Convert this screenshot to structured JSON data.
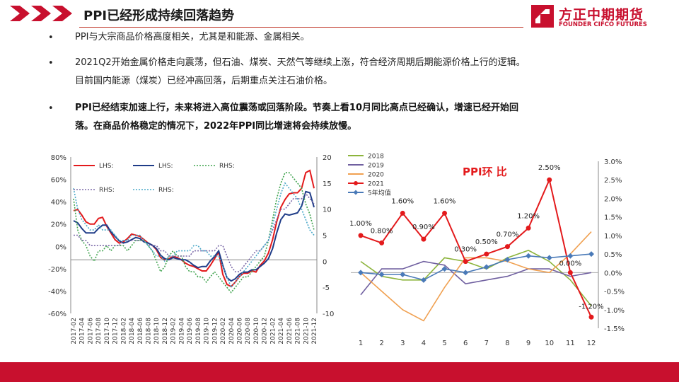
{
  "header": {
    "title": "PPI已经形成持续回落趋势"
  },
  "logo": {
    "cn": "方正中期期货",
    "en": "FOUNDER CIFCO FUTURES"
  },
  "bullets": [
    {
      "symbol": "•",
      "lines": [
        "PPI与大宗商品价格高度相关，尤其是和能源、金属相关。"
      ]
    },
    {
      "symbol": "•",
      "lines": [
        "2021Q2开始金属价格走向震荡，但石油、煤炭、天然气等继续上涨，符合经济周期后期能源价格上行的逻辑。",
        "目前国内能源（煤炭）已经冲高回落，后期重点关注石油价格。"
      ]
    },
    {
      "symbol": "•",
      "lines": [
        "PPI已经结束加速上行，未来将进入高位震荡或回落阶段。节奏上看10月同比高点已经确认，增速已经开始回",
        "落。在商品价格稳定的情况下，2022年PPI同比增速将会持续放慢。"
      ]
    }
  ],
  "left_chart": {
    "legend": [
      "LHS:",
      "LHS:",
      "RHS:",
      "RHS:",
      "RHS:"
    ],
    "y_left_ticks": [
      "80%",
      "60%",
      "40%",
      "20%",
      "0%",
      "-20%",
      "-40%",
      "-60%"
    ],
    "y_right_ticks": [
      "20",
      "15",
      "10",
      "5",
      "0",
      "-5",
      "-10"
    ],
    "x_ticks": [
      "2017-02",
      "2017-04",
      "2017-06",
      "2017-08",
      "2017-10",
      "2017-12",
      "2018-02",
      "2018-04",
      "2018-06",
      "2018-08",
      "2018-10",
      "2018-12",
      "2019-02",
      "2019-04",
      "2019-06",
      "2019-08",
      "2019-10",
      "2019-12",
      "2020-02",
      "2020-04",
      "2020-06",
      "2020-08",
      "2020-10",
      "2020-12",
      "2021-02",
      "2021-04",
      "2021-06",
      "2021-08",
      "2021-10",
      "2021-12"
    ],
    "colors": {
      "lhs1": "#e31a1c",
      "lhs2": "#1f3c88",
      "rhs1": "#3fa34d",
      "rhs2": "#7b6aa8",
      "rhs3": "#4aa8c8"
    }
  },
  "chart_data": [
    {
      "type": "line",
      "title": "",
      "x": [
        "2017-02",
        "2017-03",
        "2017-04",
        "2017-05",
        "2017-06",
        "2017-07",
        "2017-08",
        "2017-09",
        "2017-10",
        "2017-11",
        "2017-12",
        "2018-01",
        "2018-02",
        "2018-03",
        "2018-04",
        "2018-05",
        "2018-06",
        "2018-07",
        "2018-08",
        "2018-09",
        "2018-10",
        "2018-11",
        "2018-12",
        "2019-01",
        "2019-02",
        "2019-03",
        "2019-04",
        "2019-05",
        "2019-06",
        "2019-07",
        "2019-08",
        "2019-09",
        "2019-10",
        "2019-11",
        "2019-12",
        "2020-01",
        "2020-02",
        "2020-03",
        "2020-04",
        "2020-05",
        "2020-06",
        "2020-07",
        "2020-08",
        "2020-09",
        "2020-10",
        "2020-11",
        "2020-12",
        "2021-01",
        "2021-02",
        "2021-03",
        "2021-04",
        "2021-05",
        "2021-06",
        "2021-07",
        "2021-08",
        "2021-09",
        "2021-10",
        "2021-11",
        "2021-12"
      ],
      "ylim": [
        -60,
        80
      ],
      "y2lim": [
        -10,
        20
      ],
      "series": [
        {
          "name": "LHS:",
          "axis": "left",
          "color": "#e31a1c",
          "values": [
            32,
            33,
            28,
            22,
            20,
            20,
            25,
            26,
            18,
            12,
            6,
            3,
            4,
            7,
            11,
            10,
            9,
            6,
            3,
            1,
            -3,
            -10,
            -12,
            -11,
            -9,
            -10,
            -12,
            -15,
            -17,
            -18,
            -20,
            -22,
            -22,
            -17,
            -11,
            -5,
            -25,
            -34,
            -36,
            -32,
            -27,
            -24,
            -24,
            -22,
            -23,
            -17,
            -13,
            -6,
            6,
            22,
            35,
            42,
            47,
            48,
            48,
            52,
            66,
            68,
            52
          ]
        },
        {
          "name": "LHS:",
          "axis": "left",
          "color": "#1f3c88",
          "values": [
            23,
            21,
            16,
            12,
            12,
            12,
            16,
            19,
            19,
            13,
            9,
            5,
            3,
            4,
            6,
            8,
            7,
            4,
            3,
            1,
            -2,
            -8,
            -11,
            -12,
            -10,
            -11,
            -12,
            -12,
            -14,
            -17,
            -19,
            -18,
            -18,
            -13,
            -9,
            -4,
            -17,
            -28,
            -31,
            -29,
            -25,
            -23,
            -23,
            -21,
            -21,
            -18,
            -15,
            -11,
            -2,
            12,
            24,
            29,
            28,
            29,
            30,
            36,
            49,
            48,
            35
          ]
        },
        {
          "name": "RHS:",
          "axis": "right",
          "color": "#3fa34d",
          "values": [
            12,
            6,
            4,
            3,
            1,
            0,
            2,
            2,
            3,
            2,
            3,
            3,
            3,
            2,
            3,
            4,
            4,
            4,
            3,
            2,
            0,
            -2,
            -1,
            1,
            2,
            1,
            1,
            -1,
            -2,
            -2,
            -3,
            -3,
            -4,
            -3,
            -2,
            -3,
            -4,
            -5,
            -6,
            -5,
            -4,
            -3,
            -3,
            -2,
            -1,
            0,
            1,
            4,
            8,
            12,
            15,
            17,
            17,
            16,
            15,
            14,
            11,
            9,
            6
          ]
        },
        {
          "name": "RHS:",
          "axis": "right",
          "color": "#7b6aa8",
          "values": [
            5,
            5,
            4,
            4,
            3,
            3,
            3,
            3,
            3,
            3,
            3,
            3,
            4,
            4,
            4,
            4,
            4,
            4,
            3,
            3,
            3,
            2,
            2,
            1,
            1,
            1,
            1,
            1,
            1,
            2,
            2,
            2,
            2,
            2,
            2,
            3,
            3,
            1,
            -1,
            -2,
            -2,
            -1,
            0,
            1,
            2,
            2,
            3,
            4,
            6,
            8,
            10,
            10,
            11,
            12,
            12,
            12,
            13,
            12,
            11
          ]
        },
        {
          "name": "RHS:",
          "axis": "right",
          "color": "#4aa8c8",
          "values": [
            14,
            10,
            8,
            7,
            6,
            6,
            7,
            6,
            6,
            6,
            5,
            4,
            4,
            4,
            5,
            5,
            5,
            4,
            3,
            2,
            1,
            1,
            0,
            1,
            1,
            2,
            2,
            2,
            2,
            3,
            3,
            2,
            2,
            1,
            1,
            1,
            -1,
            -3,
            -5,
            -4,
            -3,
            -2,
            -1,
            0,
            1,
            2,
            3,
            4,
            7,
            10,
            13,
            15,
            14,
            13,
            12,
            10,
            8,
            6,
            5
          ]
        }
      ]
    },
    {
      "type": "line",
      "title": "PPI环 比",
      "x": [
        1,
        2,
        3,
        4,
        5,
        6,
        7,
        8,
        9,
        10,
        11,
        12
      ],
      "ylim": [
        -1.5,
        3.0
      ],
      "y_ticks": [
        "3.0%",
        "2.5%",
        "2.0%",
        "1.5%",
        "1.0%",
        "0.5%",
        "0.0%",
        "-0.5%",
        "-1.0%",
        "-1.5%"
      ],
      "series": [
        {
          "name": "2018",
          "color": "#8cb43c",
          "values": [
            0.3,
            -0.1,
            -0.2,
            -0.2,
            0.4,
            0.3,
            0.1,
            0.4,
            0.6,
            0.3,
            -0.2,
            -0.9
          ]
        },
        {
          "name": "2019",
          "color": "#7060a0",
          "values": [
            -0.6,
            0.1,
            0.1,
            0.3,
            0.2,
            -0.3,
            -0.2,
            -0.1,
            0.1,
            0.1,
            -0.1,
            0.0
          ]
        },
        {
          "name": "2020",
          "color": "#f0a050",
          "values": [
            0.0,
            -0.5,
            -1.0,
            -1.3,
            -0.4,
            0.4,
            0.4,
            0.3,
            0.1,
            0.0,
            0.5,
            1.1
          ]
        },
        {
          "name": "2021",
          "color": "#e31a1c",
          "values": [
            1.0,
            0.8,
            1.6,
            0.9,
            1.6,
            0.3,
            0.5,
            0.7,
            1.2,
            2.5,
            0.0,
            -1.2
          ],
          "labels": [
            "1.00%",
            "0.80%",
            "1.60%",
            "0.90%",
            "1.60%",
            "0.30%",
            "0.50%",
            "0.70%",
            "1.20%",
            "2.50%",
            "0.00%",
            "-1.20%"
          ]
        },
        {
          "name": "5年均值",
          "color": "#4a7ab8",
          "values": [
            0.0,
            -0.05,
            -0.05,
            -0.2,
            0.1,
            0.0,
            0.15,
            0.35,
            0.45,
            0.4,
            0.45,
            0.5
          ]
        }
      ]
    }
  ]
}
